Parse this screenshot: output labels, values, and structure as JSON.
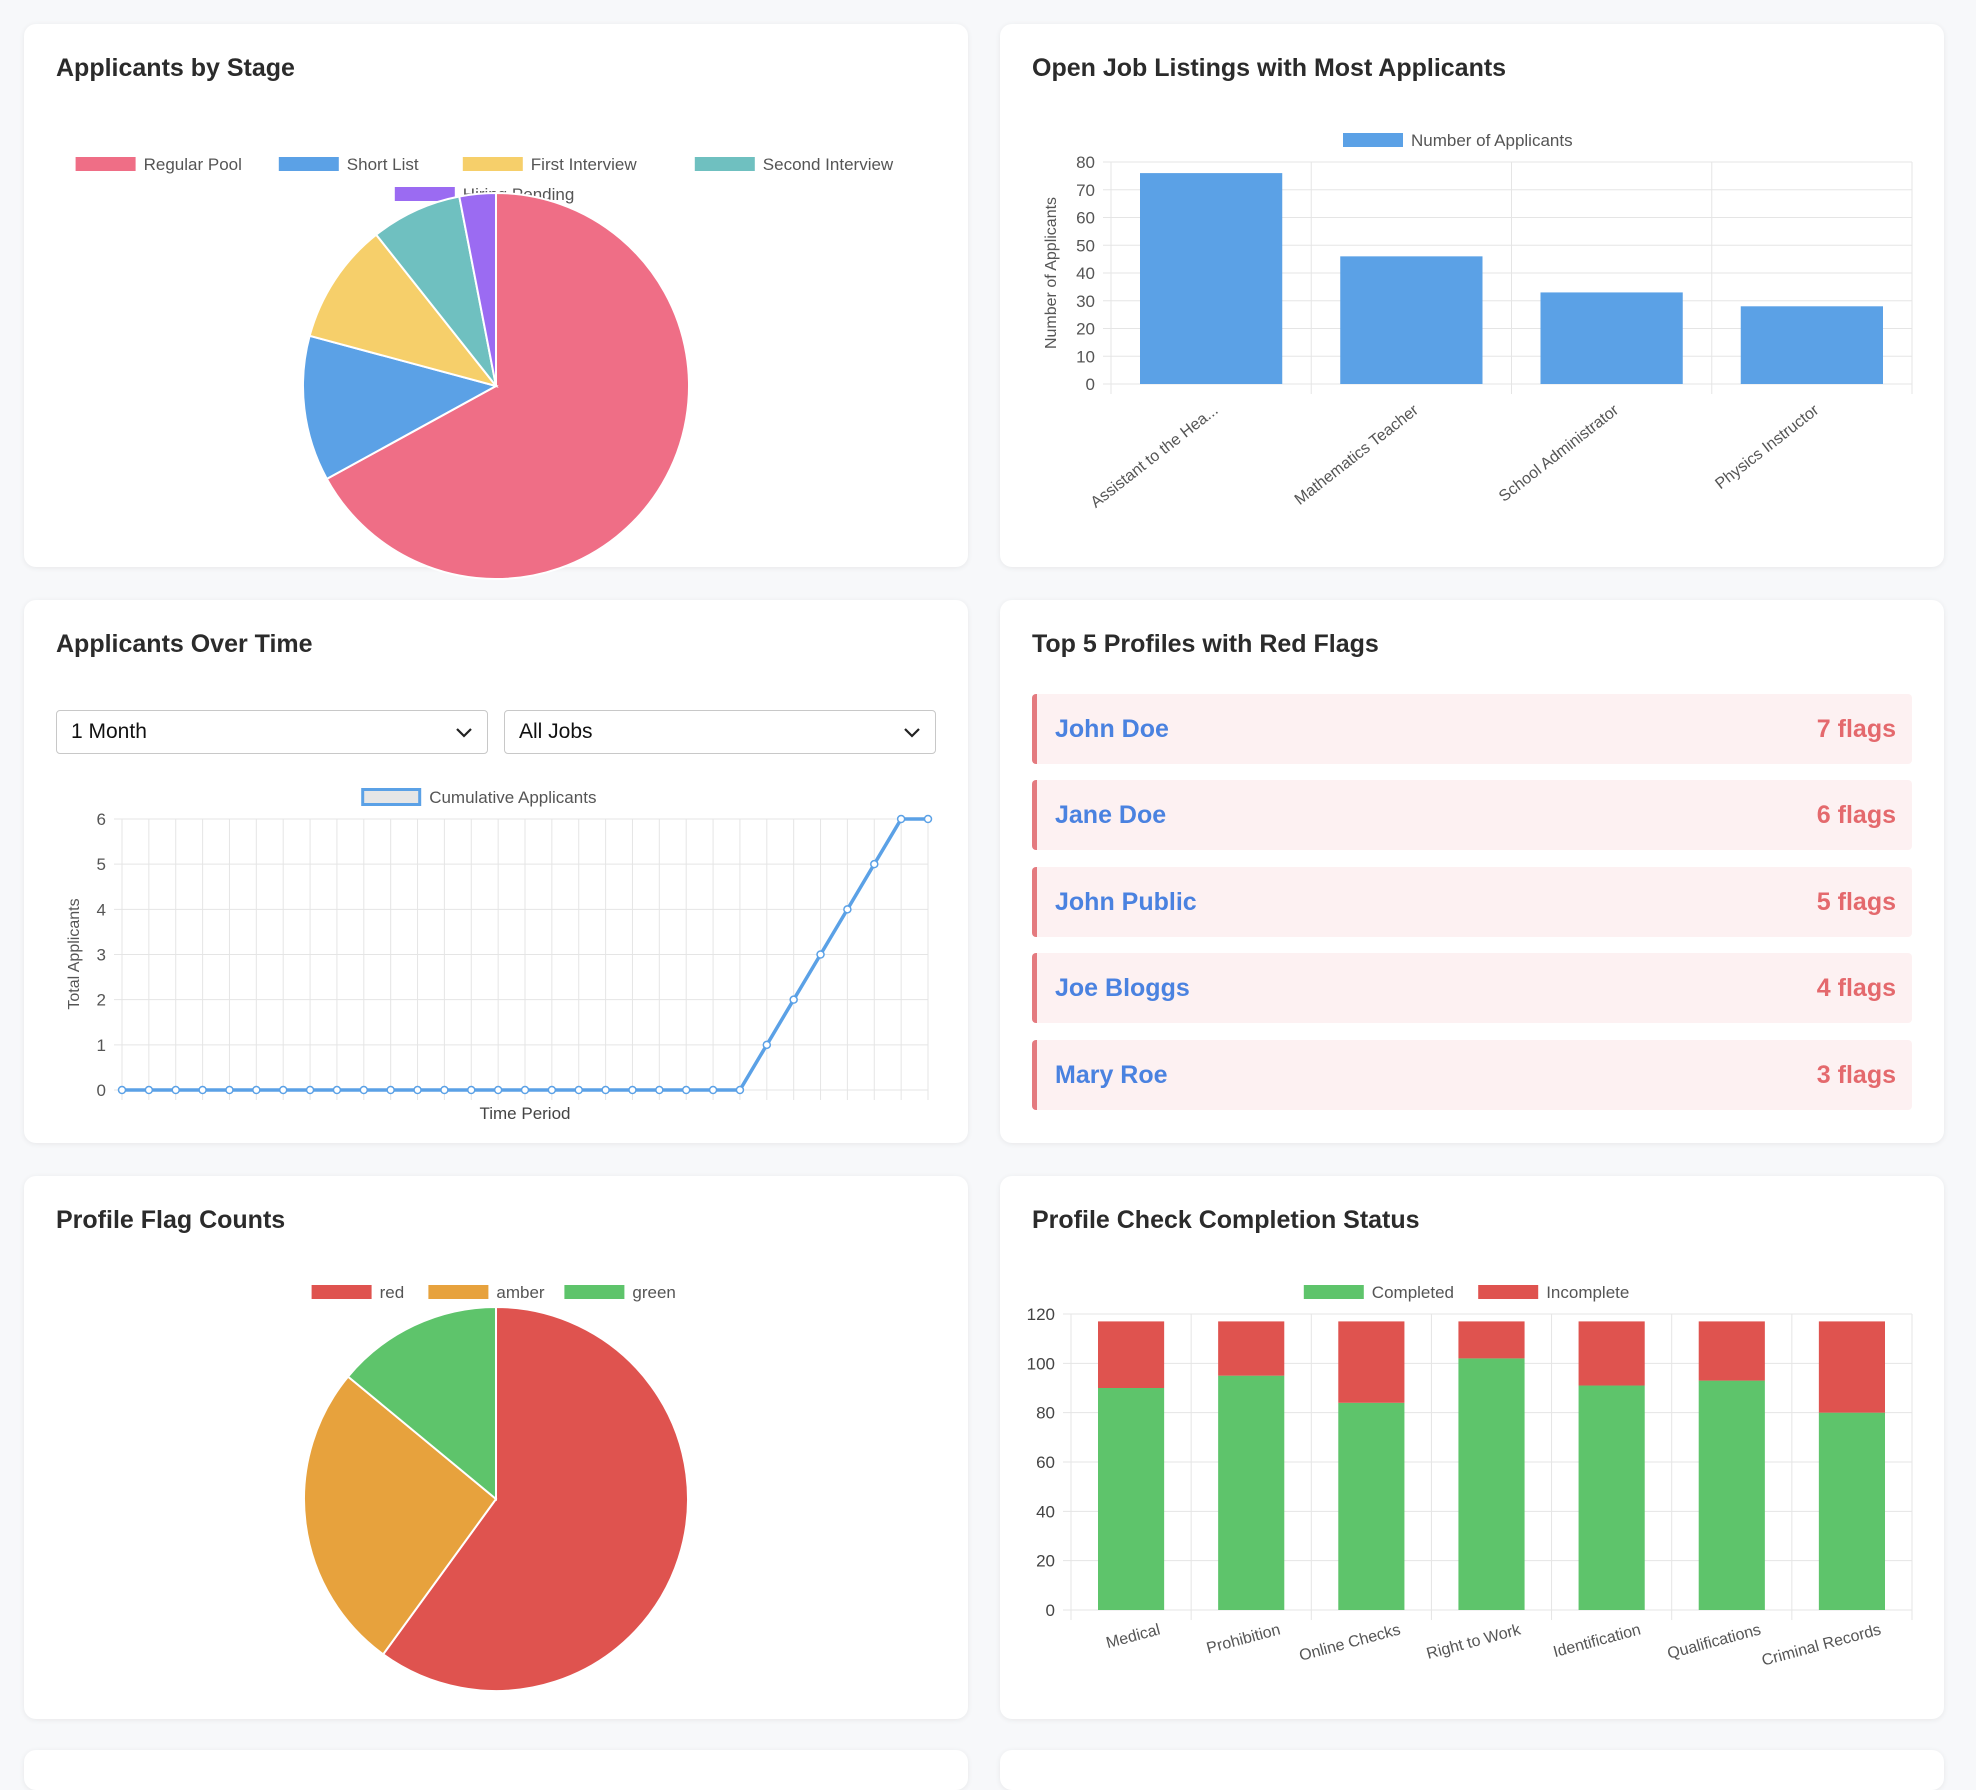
{
  "colors": {
    "blue": "#5ba1e6",
    "red_flag": "#df534f",
    "amber": "#e7a23d",
    "green": "#5ec46b",
    "pink": "#ef6e86",
    "yellow": "#f6cf6a",
    "teal": "#6fc0c0",
    "purple": "#9b6bf2"
  },
  "cards": {
    "stage": {
      "title": "Applicants by Stage"
    },
    "listings": {
      "title": "Open Job Listings with Most Applicants"
    },
    "time": {
      "title": "Applicants Over Time"
    },
    "redflags": {
      "title": "Top 5 Profiles with Red Flags"
    },
    "flagcounts": {
      "title": "Profile Flag Counts"
    },
    "completion": {
      "title": "Profile Check Completion Status"
    }
  },
  "filters": {
    "period": {
      "value": "1 Month"
    },
    "jobs": {
      "value": "All Jobs"
    }
  },
  "red_flag_profiles": [
    {
      "name": "John Doe",
      "flags": "7 flags"
    },
    {
      "name": "Jane Doe",
      "flags": "6 flags"
    },
    {
      "name": "John Public",
      "flags": "5 flags"
    },
    {
      "name": "Joe Bloggs",
      "flags": "4 flags"
    },
    {
      "name": "Mary Roe",
      "flags": "3 flags"
    }
  ],
  "chart_data": [
    {
      "id": "stage",
      "type": "pie",
      "title": "Applicants by Stage",
      "labels": [
        "Regular Pool",
        "Short List",
        "First Interview",
        "Second Interview",
        "Hiring Pending"
      ],
      "values": [
        66,
        12,
        10,
        7.5,
        3
      ],
      "colors": [
        "#ef6e86",
        "#5ba1e6",
        "#f6cf6a",
        "#6fc0c0",
        "#9b6bf2"
      ],
      "legend": "top"
    },
    {
      "id": "listings",
      "type": "bar",
      "title": "Open Job Listings with Most Applicants",
      "series_name": "Number of Applicants",
      "categories": [
        "Assistant to the Hea...",
        "Mathematics Teacher",
        "School Administrator",
        "Physics Instructor"
      ],
      "values": [
        76,
        46,
        33,
        28
      ],
      "ylabel": "Number of Applicants",
      "ylim": [
        0,
        80
      ],
      "yticks": [
        0,
        10,
        20,
        30,
        40,
        50,
        60,
        70,
        80
      ],
      "grid": true,
      "legend": "top"
    },
    {
      "id": "time",
      "type": "line",
      "title": "Applicants Over Time",
      "series_name": "Cumulative Applicants",
      "values": [
        0,
        0,
        0,
        0,
        0,
        0,
        0,
        0,
        0,
        0,
        0,
        0,
        0,
        0,
        0,
        0,
        0,
        0,
        0,
        0,
        0,
        0,
        0,
        0,
        1,
        2,
        3,
        4,
        5,
        6,
        6
      ],
      "xlabel": "Time Period",
      "ylabel": "Total Applicants",
      "ylim": [
        0,
        6
      ],
      "yticks": [
        0,
        1,
        2,
        3,
        4,
        5,
        6
      ],
      "grid": true,
      "legend": "top"
    },
    {
      "id": "flagcounts",
      "type": "pie",
      "title": "Profile Flag Counts",
      "labels": [
        "red",
        "amber",
        "green"
      ],
      "values": [
        60,
        26,
        14
      ],
      "colors": [
        "#df534f",
        "#e7a23d",
        "#5ec46b"
      ],
      "legend": "top"
    },
    {
      "id": "completion",
      "type": "bar",
      "stacked": true,
      "title": "Profile Check Completion Status",
      "categories": [
        "Medical",
        "Prohibition",
        "Online Checks",
        "Right to Work",
        "Identification",
        "Qualifications",
        "Criminal Records"
      ],
      "series": [
        {
          "name": "Completed",
          "values": [
            90,
            95,
            84,
            102,
            91,
            93,
            80
          ],
          "color": "#5ec46b"
        },
        {
          "name": "Incomplete",
          "values": [
            27,
            22,
            33,
            15,
            26,
            24,
            37
          ],
          "color": "#df534f"
        }
      ],
      "ylim": [
        0,
        120
      ],
      "yticks": [
        0,
        20,
        40,
        60,
        80,
        100,
        120
      ],
      "grid": true,
      "legend": "top"
    }
  ]
}
